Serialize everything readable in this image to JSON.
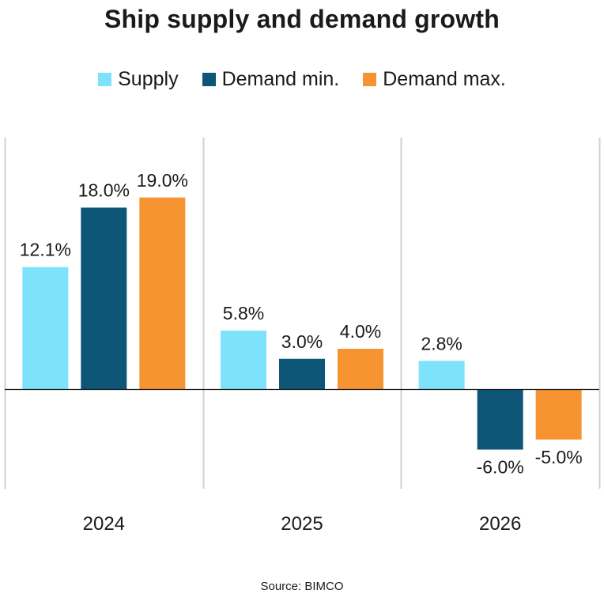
{
  "chart_data": {
    "type": "bar",
    "title": "Ship supply and demand growth",
    "categories": [
      "2024",
      "2025",
      "2026"
    ],
    "series": [
      {
        "name": "Supply",
        "color": "#7fe2fb",
        "values": [
          12.1,
          5.8,
          2.8
        ],
        "labels": [
          "12.1%",
          "5.8%",
          "2.8%"
        ]
      },
      {
        "name": "Demand min.",
        "color": "#0d5677",
        "values": [
          18.0,
          3.0,
          -6.0
        ],
        "labels": [
          "18.0%",
          "3.0%",
          "-6.0%"
        ]
      },
      {
        "name": "Demand max.",
        "color": "#f59430",
        "values": [
          19.0,
          4.0,
          -5.0
        ],
        "labels": [
          "19.0%",
          "4.0%",
          "-5.0%"
        ]
      }
    ],
    "legend_position": "top",
    "source": "Source: BIMCO",
    "grid": false
  }
}
